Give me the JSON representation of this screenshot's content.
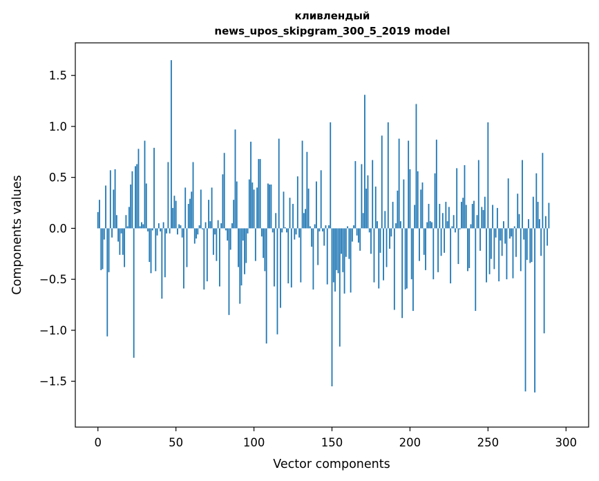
{
  "chart_data": {
    "type": "bar",
    "title_line1": "кливлендый",
    "title_line2": "news_upos_skipgram_300_5_2019 model",
    "xlabel": "Vector components",
    "ylabel": "Components values",
    "xlim": [
      -14.5,
      314.5
    ],
    "ylim": [
      -1.95,
      1.82
    ],
    "xticks": [
      0,
      50,
      100,
      150,
      200,
      250,
      300
    ],
    "xtick_labels": [
      "0",
      "50",
      "100",
      "150",
      "200",
      "250",
      "300"
    ],
    "yticks": [
      -1.5,
      -1.0,
      -0.5,
      0.0,
      0.5,
      1.0,
      1.5
    ],
    "ytick_labels": [
      "−1.5",
      "−1.0",
      "−0.5",
      "0.0",
      "0.5",
      "1.0",
      "1.5"
    ],
    "bar_color": "#1f77b4",
    "grid": false,
    "values": [
      0.16,
      0.28,
      -0.41,
      -0.4,
      -0.11,
      0.42,
      -1.06,
      -0.43,
      0.57,
      -0.09,
      0.38,
      0.58,
      0.13,
      -0.13,
      -0.26,
      -0.05,
      -0.26,
      -0.38,
      0.13,
      0.02,
      0.21,
      0.43,
      0.56,
      -1.27,
      0.61,
      0.63,
      0.78,
      0.02,
      0.06,
      0.04,
      0.86,
      0.44,
      -0.03,
      -0.33,
      -0.44,
      -0.02,
      0.79,
      -0.42,
      -0.07,
      0.05,
      -0.03,
      -0.69,
      0.06,
      -0.48,
      -0.05,
      0.65,
      -0.05,
      1.65,
      0.2,
      0.32,
      0.27,
      -0.06,
      0.04,
      0.03,
      -0.09,
      -0.59,
      0.4,
      -0.38,
      0.24,
      0.29,
      0.36,
      0.65,
      -0.15,
      -0.1,
      -0.06,
      0.03,
      0.38,
      -0.01,
      -0.6,
      0.06,
      -0.52,
      0.28,
      0.07,
      0.4,
      -0.26,
      -0.06,
      -0.32,
      0.08,
      -0.57,
      0.05,
      0.53,
      0.74,
      -0.02,
      -0.12,
      -0.85,
      -0.21,
      0.05,
      0.28,
      0.97,
      0.46,
      -0.38,
      -0.74,
      -0.56,
      -0.12,
      -0.45,
      -0.34,
      -0.05,
      0.48,
      0.85,
      0.45,
      0.38,
      -0.32,
      0.4,
      0.68,
      0.68,
      -0.08,
      -0.29,
      -0.42,
      -1.13,
      0.44,
      0.43,
      0.43,
      -0.04,
      -0.57,
      0.15,
      -1.04,
      0.88,
      -0.78,
      -0.04,
      0.36,
      0.01,
      -0.04,
      -0.54,
      0.3,
      -0.58,
      0.24,
      -0.11,
      -0.06,
      0.51,
      -0.09,
      -0.53,
      0.86,
      0.15,
      0.19,
      0.75,
      0.39,
      0.02,
      -0.18,
      -0.6,
      0.04,
      0.46,
      -0.36,
      -0.03,
      0.57,
      -0.03,
      -0.17,
      0.03,
      -0.55,
      0.03,
      1.04,
      -1.55,
      -0.53,
      -0.62,
      -0.41,
      -0.44,
      -1.16,
      -0.25,
      -0.43,
      -0.64,
      -0.28,
      0.02,
      -0.3,
      -0.63,
      -0.13,
      0.03,
      0.66,
      -0.07,
      -0.14,
      -0.22,
      0.63,
      0.15,
      1.31,
      0.39,
      0.52,
      -0.04,
      -0.25,
      0.67,
      -0.53,
      0.41,
      0.07,
      -0.59,
      -0.24,
      0.91,
      -0.51,
      0.17,
      -0.38,
      1.04,
      -0.2,
      -0.08,
      0.26,
      -0.8,
      0.05,
      0.37,
      0.88,
      0.07,
      -0.88,
      0.48,
      -0.6,
      -0.59,
      0.86,
      0.58,
      -0.5,
      -0.81,
      0.23,
      1.22,
      0.56,
      -0.32,
      0.38,
      0.45,
      -0.26,
      -0.41,
      0.06,
      0.24,
      0.07,
      0.06,
      -0.5,
      0.54,
      0.87,
      -0.43,
      0.24,
      -0.27,
      0.15,
      -0.24,
      0.26,
      0.07,
      0.21,
      -0.54,
      0.02,
      0.13,
      -0.04,
      0.59,
      -0.35,
      -0.01,
      0.26,
      0.3,
      0.62,
      0.23,
      -0.42,
      -0.39,
      0.04,
      0.24,
      0.27,
      -0.81,
      0.13,
      0.67,
      -0.22,
      0.21,
      0.18,
      0.31,
      -0.53,
      1.04,
      -0.45,
      -0.3,
      0.23,
      -0.4,
      -0.09,
      0.2,
      -0.52,
      -0.12,
      -0.27,
      0.07,
      -0.15,
      -0.5,
      0.49,
      -0.1,
      -0.08,
      -0.49,
      0.02,
      -0.28,
      0.34,
      0.14,
      -0.42,
      0.67,
      -0.11,
      -1.6,
      -0.31,
      0.09,
      -0.34,
      -0.33,
      0.31,
      -1.61,
      0.54,
      0.26,
      0.09,
      -0.27,
      0.74,
      -1.03,
      0.12,
      -0.17,
      0.25
    ],
    "_note_values": "values truncated above to 300 columns; see below"
  }
}
